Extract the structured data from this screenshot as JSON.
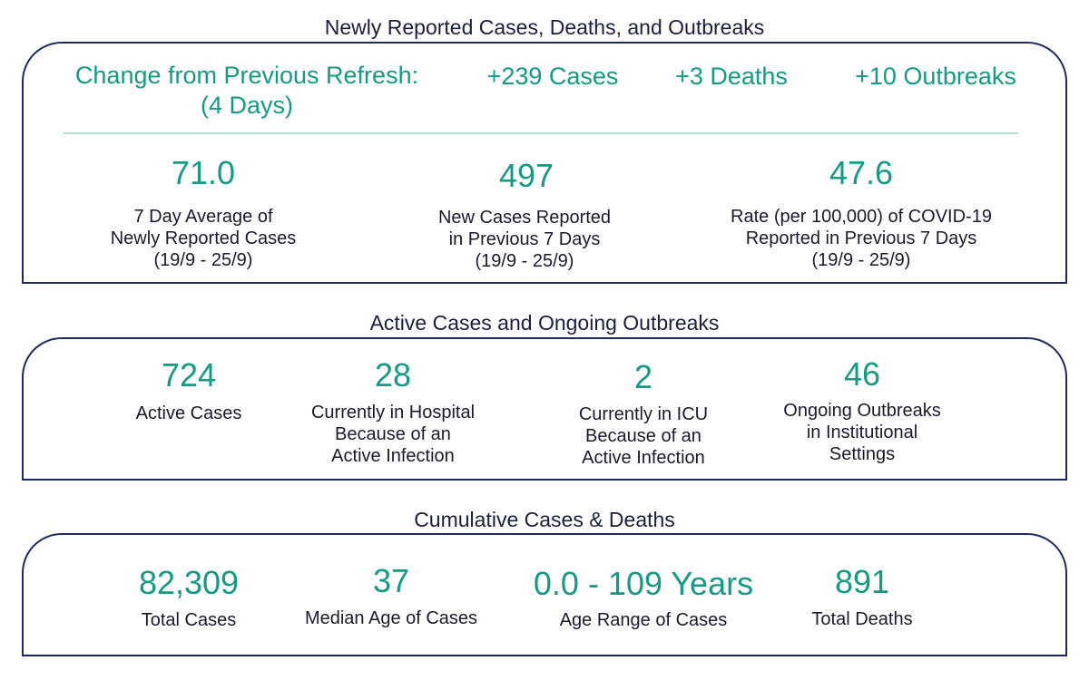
{
  "newly": {
    "heading": "Newly Reported Cases, Deaths, and Outbreaks",
    "change_label_line1": "Change from Previous Refresh:",
    "change_label_line2": "(4 Days)",
    "change_cases": "+239 Cases",
    "change_deaths": "+3 Deaths",
    "change_outbreaks": "+10 Outbreaks",
    "stats": [
      {
        "value": "71.0",
        "label_lines": [
          "7 Day Average of",
          "Newly Reported Cases",
          "(19/9 - 25/9)"
        ]
      },
      {
        "value": "497",
        "label_lines": [
          "New Cases Reported",
          "in Previous 7 Days",
          "(19/9 - 25/9)"
        ]
      },
      {
        "value": "47.6",
        "label_lines": [
          "Rate (per 100,000) of COVID-19",
          "Reported in Previous 7 Days",
          "(19/9 - 25/9)"
        ]
      }
    ]
  },
  "active": {
    "heading": "Active Cases and Ongoing Outbreaks",
    "stats": [
      {
        "value": "724",
        "label_lines": [
          "Active Cases"
        ]
      },
      {
        "value": "28",
        "label_lines": [
          "Currently in Hospital",
          "Because of an",
          "Active Infection"
        ]
      },
      {
        "value": "2",
        "label_lines": [
          "Currently in ICU",
          "Because of an",
          "Active Infection"
        ]
      },
      {
        "value": "46",
        "label_lines": [
          "Ongoing Outbreaks",
          "in Institutional",
          "Settings"
        ]
      }
    ]
  },
  "cumulative": {
    "heading": "Cumulative Cases & Deaths",
    "stats": [
      {
        "value": "82,309",
        "label_lines": [
          "Total Cases"
        ]
      },
      {
        "value": "37",
        "label_lines": [
          "Median Age of Cases"
        ]
      },
      {
        "value": "0.0 - 109 Years",
        "label_lines": [
          "Age Range of Cases"
        ]
      },
      {
        "value": "891",
        "label_lines": [
          "Total Deaths"
        ]
      }
    ]
  },
  "colors": {
    "accent": "#159a83",
    "border": "#1f2a5c",
    "divider": "#b8ddd6",
    "text": "#1a1a2e"
  }
}
